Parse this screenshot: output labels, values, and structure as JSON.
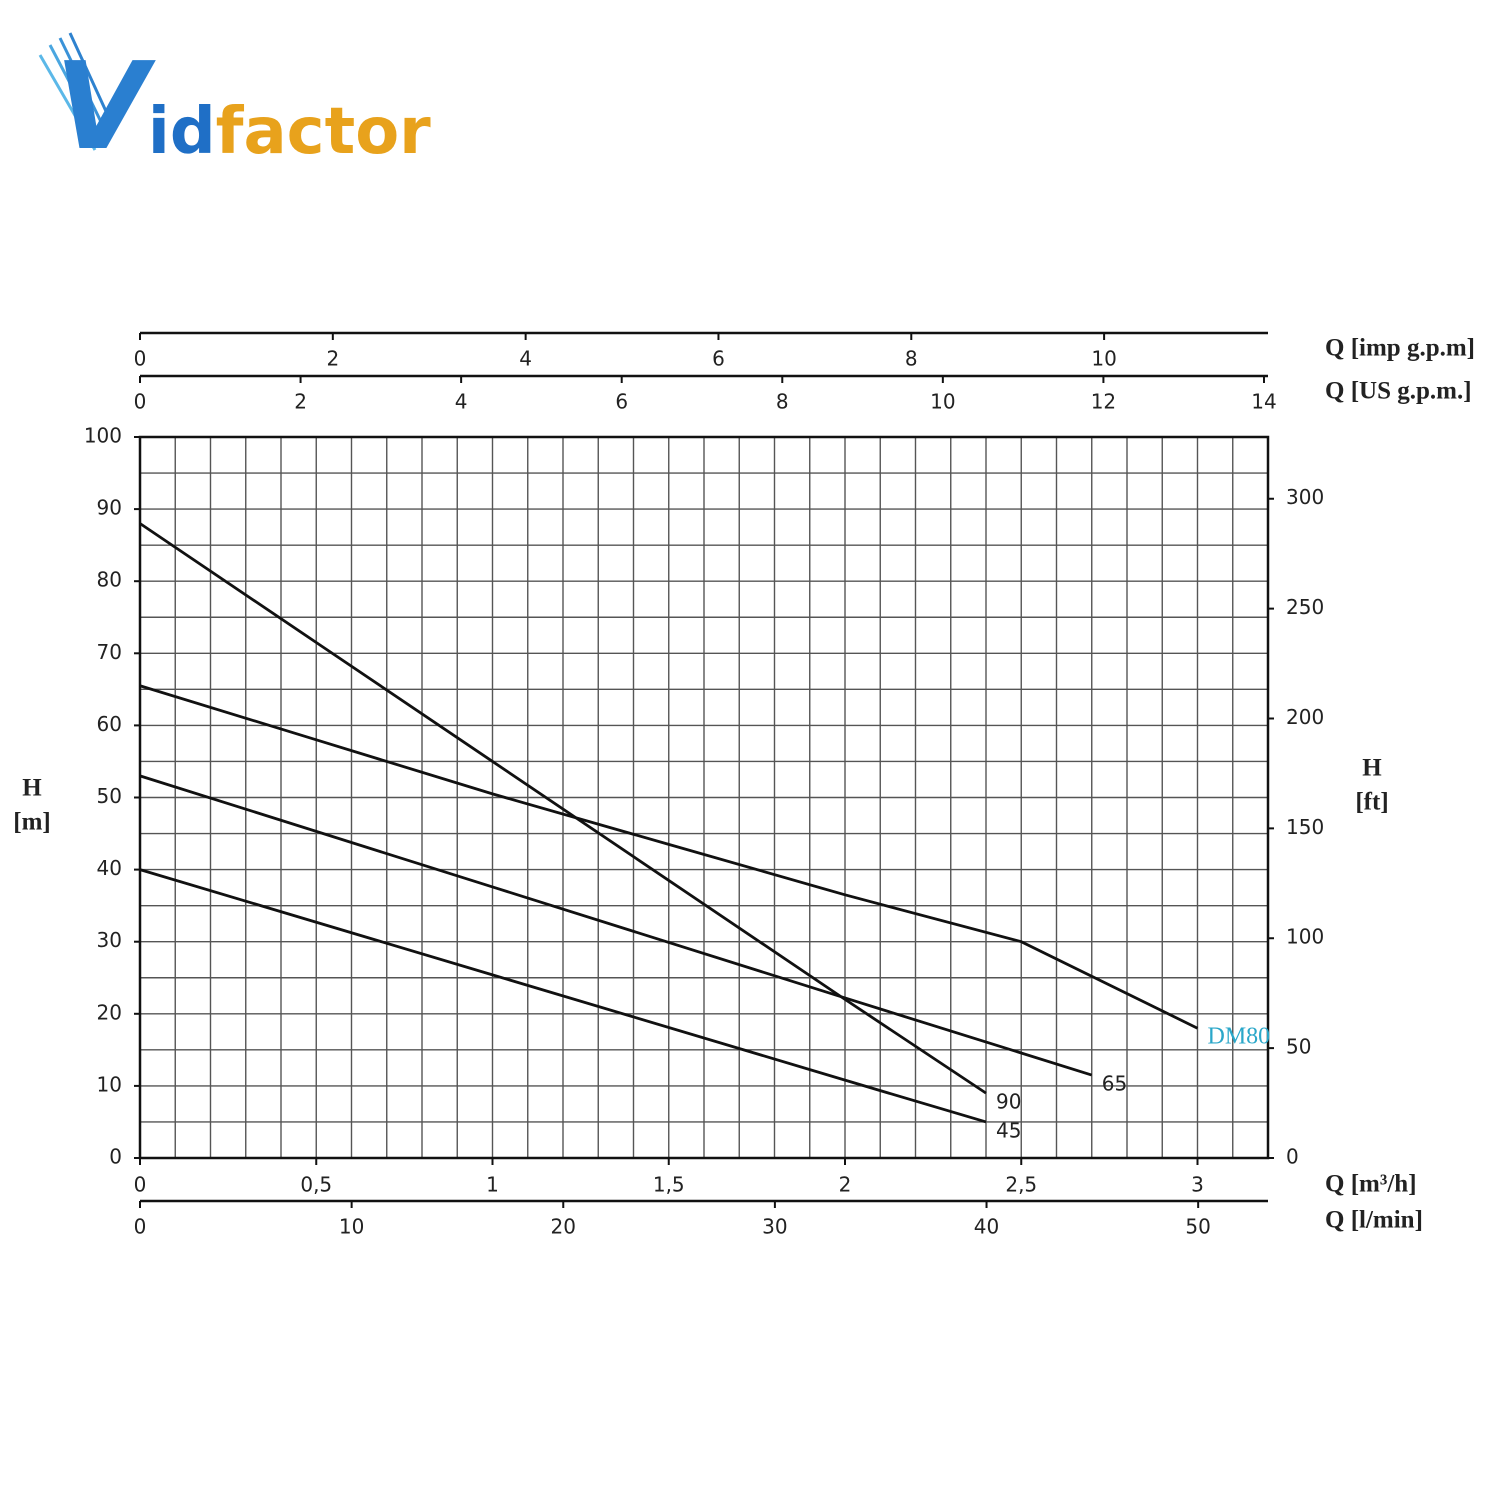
{
  "logo": {
    "parts": [
      "V",
      "id",
      "factor"
    ]
  },
  "chart_data": {
    "type": "line",
    "xlabel": "Q [m³/h]",
    "ylabel": [
      "H",
      "[m]"
    ],
    "y2label": [
      "H",
      "[ft]"
    ],
    "xlim": [
      0,
      3.2
    ],
    "xticks": [
      0,
      {
        "value": 0.5,
        "label": "0,5"
      },
      1,
      {
        "value": 1.5,
        "label": "1,5"
      },
      2,
      {
        "value": 2.5,
        "label": "2,5"
      },
      3
    ],
    "xminorticks": [
      0,
      0.1,
      0.2,
      0.3,
      0.4,
      0.5,
      0.6,
      0.7,
      0.8,
      0.9,
      1,
      1.1,
      1.2,
      1.3,
      1.4,
      1.5,
      1.6,
      1.7,
      1.8,
      1.9,
      2,
      2.1,
      2.2,
      2.3,
      2.4,
      2.5,
      2.6,
      2.7,
      2.8,
      2.9,
      3,
      3.1,
      3.2
    ],
    "ylim": [
      0,
      100
    ],
    "yticks": [
      0,
      10,
      20,
      30,
      40,
      50,
      60,
      70,
      80,
      90,
      100
    ],
    "yminorticks": [
      0,
      5,
      10,
      15,
      20,
      25,
      30,
      35,
      40,
      45,
      50,
      55,
      60,
      65,
      70,
      75,
      80,
      85,
      90,
      95,
      100
    ],
    "y2lim": [
      0,
      328.1
    ],
    "y2ticks": [
      0,
      50,
      100,
      150,
      200,
      250,
      300
    ],
    "secondary_x_axes": [
      {
        "label": "Q [imp g.p.m]",
        "position": "top",
        "lim": [
          0,
          11.7
        ],
        "ticks": [
          0,
          2,
          4,
          6,
          8,
          10
        ]
      },
      {
        "label": "Q [US g.p.m.]",
        "position": "top",
        "lim": [
          0,
          14.05
        ],
        "ticks": [
          0,
          2,
          4,
          6,
          8,
          10,
          12,
          14
        ]
      },
      {
        "label": "Q [l/min]",
        "position": "bottom",
        "lim": [
          0,
          53.3
        ],
        "ticks": [
          0,
          10,
          20,
          30,
          40,
          50
        ]
      }
    ],
    "grid": true,
    "series": [
      {
        "name": "90",
        "color": "#111111",
        "label_color": "#222222",
        "x": [
          0,
          0.5,
          1,
          1.5,
          2,
          2.4
        ],
        "values": [
          88,
          71.5,
          55,
          38.5,
          22,
          9
        ]
      },
      {
        "name": "45",
        "color": "#111111",
        "label_color": "#222222",
        "x": [
          0,
          1,
          2,
          2.4
        ],
        "values": [
          40,
          25.4,
          10.8,
          5
        ]
      },
      {
        "name": "65",
        "color": "#111111",
        "label_color": "#222222",
        "x": [
          0,
          1,
          2,
          2.7
        ],
        "values": [
          53,
          37.6,
          22.2,
          11.5
        ]
      },
      {
        "name": "DM80",
        "color": "#111111",
        "label_color": "#2aa7c9",
        "x": [
          0,
          0.5,
          1,
          1.5,
          2,
          2.5,
          3
        ],
        "values": [
          65.5,
          58,
          50.5,
          43.5,
          36.5,
          30,
          18
        ]
      }
    ]
  }
}
